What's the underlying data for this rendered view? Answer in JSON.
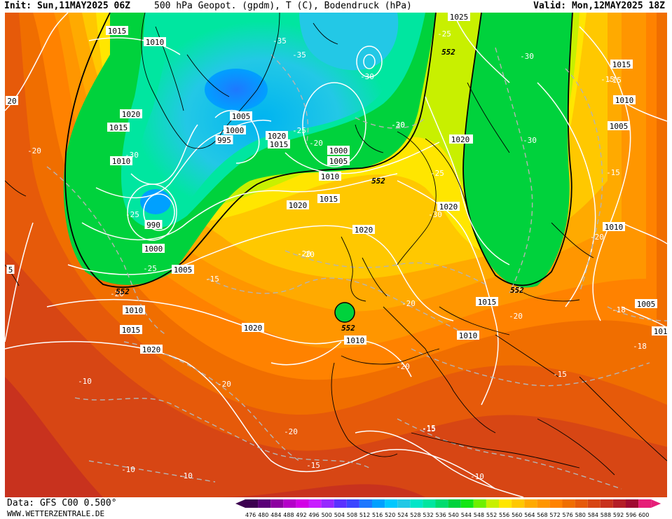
{
  "header": {
    "init": "Init: Sun,11MAY2025 06Z",
    "parameter": "500 hPa Geopot. (gpdm), T (C), Bodendruck (hPa)",
    "valid": "Valid: Mon,12MAY2025 18Z"
  },
  "footer": {
    "data": "Data: GFS C00 0.500°",
    "site": "WWW.WETTERZENTRALE.DE"
  },
  "colors": {
    "greenland_low": "#23c8e6",
    "trough_green": "#00d23c",
    "ridge_yellow": "#ffe600",
    "orange": "#ff9600",
    "deep_red": "#c8321e",
    "isobar": "#ffffff",
    "isotherm": "#b4b4b4",
    "geopot_552": "#000000"
  },
  "color_scale": {
    "labels": [
      "476",
      "480",
      "484",
      "488",
      "492",
      "496",
      "500",
      "504",
      "508",
      "512",
      "516",
      "520",
      "524",
      "528",
      "532",
      "536",
      "540",
      "544",
      "548",
      "552",
      "556",
      "560",
      "564",
      "568",
      "572",
      "576",
      "580",
      "584",
      "588",
      "592",
      "596",
      "600"
    ],
    "colors": [
      "#3c0050",
      "#5a0078",
      "#8c00a0",
      "#b400c8",
      "#d200e6",
      "#c81eff",
      "#9628ff",
      "#5a32ff",
      "#3c46ff",
      "#1e78ff",
      "#00a0ff",
      "#00c8ff",
      "#23c8e6",
      "#00e6c8",
      "#00e6a0",
      "#00dc6e",
      "#00d23c",
      "#14e614",
      "#6ef000",
      "#c8f000",
      "#ffe600",
      "#ffc800",
      "#ffaa00",
      "#ff9600",
      "#ff8200",
      "#f06e00",
      "#e65a0a",
      "#d74614",
      "#c8321e",
      "#b41e28",
      "#a00a32",
      "#e61e78"
    ]
  },
  "isobar_labels": [
    {
      "text": "1015"
    },
    {
      "text": "1010"
    },
    {
      "text": "1020"
    },
    {
      "text": "1015"
    },
    {
      "text": "1010"
    },
    {
      "text": "1005"
    },
    {
      "text": "1000"
    },
    {
      "text": "995"
    },
    {
      "text": "990"
    },
    {
      "text": "1000"
    },
    {
      "text": "1005"
    },
    {
      "text": "1010"
    },
    {
      "text": "1015"
    },
    {
      "text": "1020"
    },
    {
      "text": "1020"
    },
    {
      "text": "1015"
    },
    {
      "text": "1020"
    },
    {
      "text": "1000"
    },
    {
      "text": "1005"
    },
    {
      "text": "1010"
    },
    {
      "text": "1015"
    },
    {
      "text": "1020"
    },
    {
      "text": "1020"
    },
    {
      "text": "1020"
    },
    {
      "text": "1010"
    },
    {
      "text": "1025"
    },
    {
      "text": "1015"
    },
    {
      "text": "1010"
    },
    {
      "text": "1005"
    },
    {
      "text": "1010"
    },
    {
      "text": "1005"
    },
    {
      "text": "1010"
    },
    {
      "text": "1015"
    },
    {
      "text": "1010"
    },
    {
      "text": "1020"
    },
    {
      "text": "1010"
    },
    {
      "text": "20"
    },
    {
      "text": "5"
    },
    {
      "text": "1020"
    }
  ],
  "temp_labels": [
    {
      "text": "-35"
    },
    {
      "text": "-25"
    },
    {
      "text": "-30"
    },
    {
      "text": "-35"
    },
    {
      "text": "-30"
    },
    {
      "text": "-25"
    },
    {
      "text": "-20"
    },
    {
      "text": "-15"
    },
    {
      "text": "-30"
    },
    {
      "text": "-25"
    },
    {
      "text": "-25"
    },
    {
      "text": "-20"
    },
    {
      "text": "-15"
    },
    {
      "text": "-20"
    },
    {
      "text": "-20"
    },
    {
      "text": "-20"
    },
    {
      "text": "-20"
    },
    {
      "text": "-25"
    },
    {
      "text": "-20"
    },
    {
      "text": "-20"
    },
    {
      "text": "-30"
    },
    {
      "text": "-30"
    },
    {
      "text": "-25"
    },
    {
      "text": "-30"
    },
    {
      "text": "-15"
    },
    {
      "text": "-15"
    },
    {
      "text": "-20"
    },
    {
      "text": "-18"
    },
    {
      "text": "-15"
    },
    {
      "text": "-15"
    },
    {
      "text": "-18"
    },
    {
      "text": "-10"
    },
    {
      "text": "-10"
    },
    {
      "text": "-10"
    },
    {
      "text": "-15"
    },
    {
      "text": "-15"
    },
    {
      "text": "-20"
    },
    {
      "text": "-20"
    },
    {
      "text": "-10"
    },
    {
      "text": "-20"
    }
  ],
  "geopot_labels": [
    {
      "text": "552"
    },
    {
      "text": "552"
    },
    {
      "text": "552"
    },
    {
      "text": "552"
    },
    {
      "text": "552"
    }
  ]
}
